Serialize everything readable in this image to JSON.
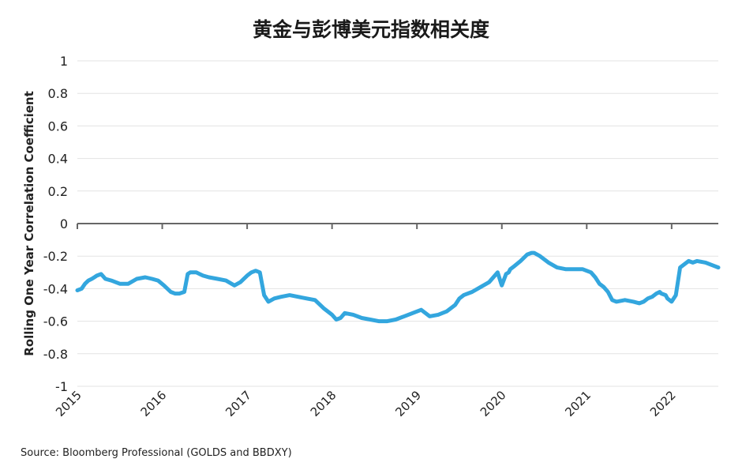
{
  "chart_data": {
    "type": "line",
    "title": "黄金与彭博美元指数相关度",
    "ylabel": "Rolling One Year Correlation Coefficient",
    "xlabel": "",
    "xlim": [
      2015.0,
      2022.55
    ],
    "ylim": [
      -1,
      1
    ],
    "yticks": [
      "1",
      "0.8",
      "0.6",
      "0.4",
      "0.2",
      "0",
      "-0.2",
      "-0.4",
      "-0.6",
      "-0.8",
      "-1"
    ],
    "xticks": [
      "2015",
      "2016",
      "2017",
      "2018",
      "2019",
      "2020",
      "2021",
      "2022"
    ],
    "grid": true,
    "line_color": "#33a6de",
    "series": [
      {
        "x": [
          2015.0,
          2015.05,
          2015.09,
          2015.13,
          2015.17,
          2015.2,
          2015.23,
          2015.28,
          2015.33,
          2015.4,
          2015.5,
          2015.6,
          2015.7,
          2015.8,
          2015.88,
          2015.95,
          2016.02,
          2016.1,
          2016.15,
          2016.2,
          2016.26,
          2016.3,
          2016.33,
          2016.4,
          2016.48,
          2016.55,
          2016.65,
          2016.75,
          2016.85,
          2016.92,
          2017.0,
          2017.05,
          2017.1,
          2017.15,
          2017.2,
          2017.25,
          2017.32,
          2017.4,
          2017.5,
          2017.6,
          2017.7,
          2017.8,
          2017.9,
          2018.0,
          2018.05,
          2018.1,
          2018.15,
          2018.25,
          2018.35,
          2018.45,
          2018.55,
          2018.65,
          2018.75,
          2018.85,
          2018.95,
          2019.05,
          2019.15,
          2019.25,
          2019.35,
          2019.4,
          2019.45,
          2019.5,
          2019.55,
          2019.65,
          2019.75,
          2019.85,
          2019.95,
          2020.0,
          2020.05,
          2020.08,
          2020.1,
          2020.15,
          2020.22,
          2020.3,
          2020.35,
          2020.38,
          2020.45,
          2020.55,
          2020.65,
          2020.75,
          2020.85,
          2020.95,
          2021.05,
          2021.1,
          2021.15,
          2021.2,
          2021.25,
          2021.3,
          2021.35,
          2021.45,
          2021.55,
          2021.62,
          2021.67,
          2021.72,
          2021.77,
          2021.82,
          2021.86,
          2021.88,
          2021.93,
          2021.95,
          2022.0,
          2022.05,
          2022.1,
          2022.15,
          2022.2,
          2022.25,
          2022.3,
          2022.4,
          2022.5,
          2022.55
        ],
        "y": [
          -0.41,
          -0.4,
          -0.37,
          -0.35,
          -0.34,
          -0.33,
          -0.32,
          -0.31,
          -0.34,
          -0.35,
          -0.37,
          -0.37,
          -0.34,
          -0.33,
          -0.34,
          -0.35,
          -0.38,
          -0.42,
          -0.43,
          -0.43,
          -0.42,
          -0.31,
          -0.3,
          -0.3,
          -0.32,
          -0.33,
          -0.34,
          -0.35,
          -0.38,
          -0.36,
          -0.32,
          -0.3,
          -0.29,
          -0.3,
          -0.44,
          -0.48,
          -0.46,
          -0.45,
          -0.44,
          -0.45,
          -0.46,
          -0.47,
          -0.52,
          -0.56,
          -0.59,
          -0.58,
          -0.55,
          -0.56,
          -0.58,
          -0.59,
          -0.6,
          -0.6,
          -0.59,
          -0.57,
          -0.55,
          -0.53,
          -0.57,
          -0.56,
          -0.54,
          -0.52,
          -0.5,
          -0.46,
          -0.44,
          -0.42,
          -0.39,
          -0.36,
          -0.3,
          -0.38,
          -0.31,
          -0.3,
          -0.28,
          -0.26,
          -0.23,
          -0.19,
          -0.18,
          -0.18,
          -0.2,
          -0.24,
          -0.27,
          -0.28,
          -0.28,
          -0.28,
          -0.3,
          -0.33,
          -0.37,
          -0.39,
          -0.42,
          -0.47,
          -0.48,
          -0.47,
          -0.48,
          -0.49,
          -0.48,
          -0.46,
          -0.45,
          -0.43,
          -0.42,
          -0.43,
          -0.44,
          -0.46,
          -0.48,
          -0.44,
          -0.27,
          -0.25,
          -0.23,
          -0.24,
          -0.23,
          -0.24,
          -0.26,
          -0.27
        ]
      }
    ]
  },
  "source": "Source: Bloomberg Professional (GOLDS and BBDXY)"
}
